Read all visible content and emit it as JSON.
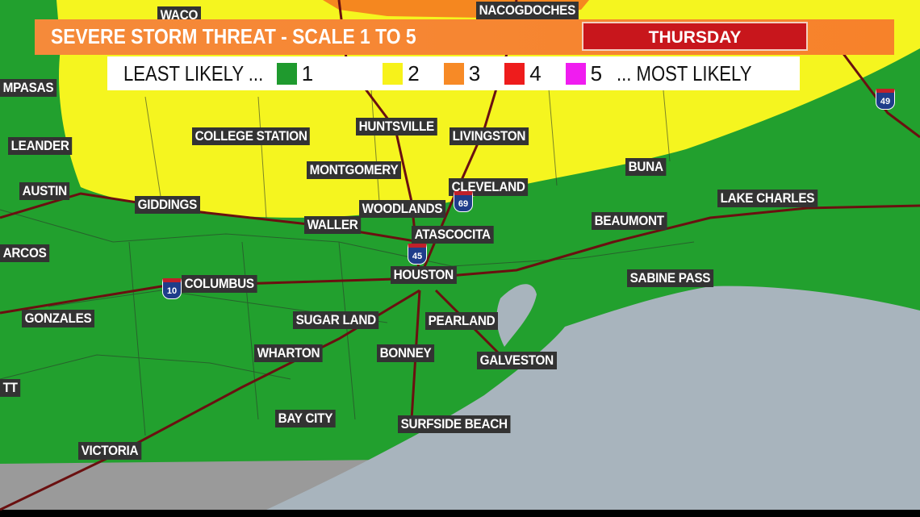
{
  "header": {
    "title": "SEVERE STORM THREAT - SCALE 1 TO 5",
    "day": "THURSDAY"
  },
  "legend": {
    "least": "LEAST LIKELY ...",
    "most": "... MOST LIKELY",
    "levels": [
      {
        "label": "1",
        "color": "#1f9a2e"
      },
      {
        "label": "2",
        "color": "#f7f21a"
      },
      {
        "label": "3",
        "color": "#f78a26"
      },
      {
        "label": "4",
        "color": "#ee1c1c"
      },
      {
        "label": "5",
        "color": "#f01cf0"
      }
    ]
  },
  "colors": {
    "green": "#22a02e",
    "yellow": "#f5f51f",
    "orange": "#f5871f",
    "gulf": "#a8b4bd",
    "gray": "#9a9a9a"
  },
  "cities": [
    "WACO",
    "NACOGDOCHES",
    "MPASAS",
    "LEANDER",
    "COLLEGE STATION",
    "HUNTSVILLE",
    "LIVINGSTON",
    "MONTGOMERY",
    "BUNA",
    "AUSTIN",
    "CLEVELAND",
    "LAKE CHARLES",
    "GIDDINGS",
    "WOODLANDS",
    "BEAUMONT",
    "WALLER",
    "ATASCOCITA",
    "ARCOS",
    "HOUSTON",
    "SABINE PASS",
    "COLUMBUS",
    "GONZALES",
    "SUGAR LAND",
    "PEARLAND",
    "WHARTON",
    "BONNEY",
    "GALVESTON",
    "TT",
    "BAY CITY",
    "SURFSIDE BEACH",
    "VICTORIA"
  ],
  "shields": [
    "49",
    "69",
    "45",
    "10"
  ]
}
